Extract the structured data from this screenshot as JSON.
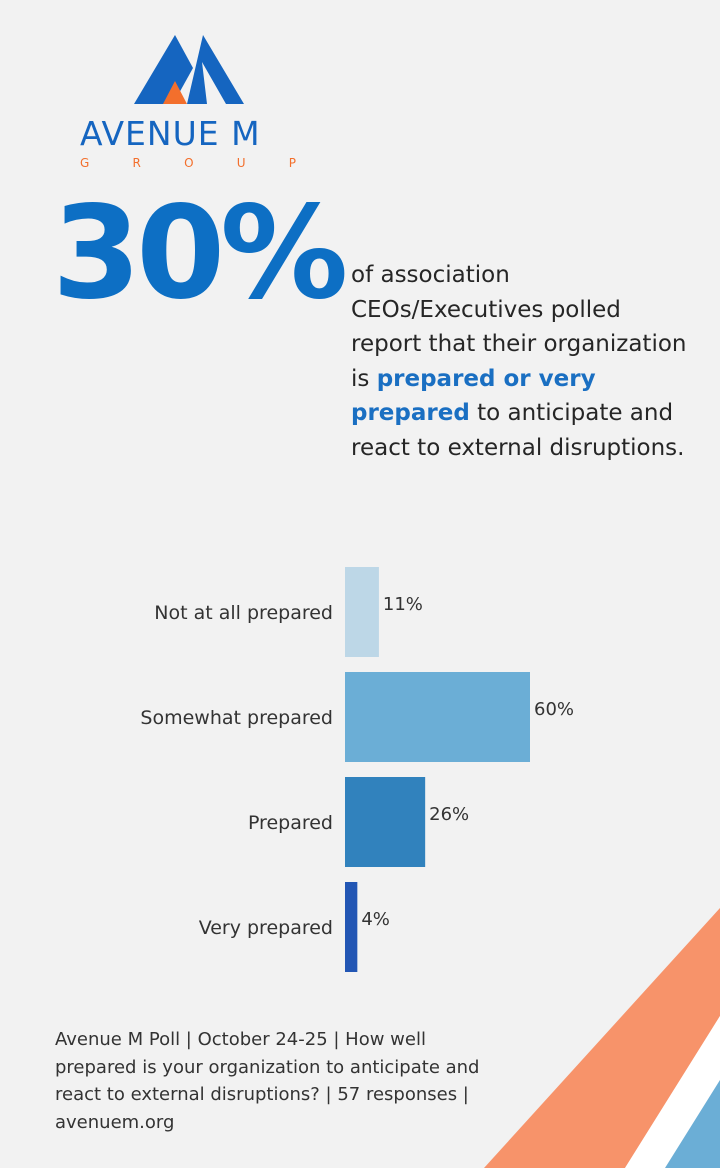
{
  "brand": {
    "name": "AVENUE M",
    "sub_letters": [
      "G",
      "R",
      "O",
      "U",
      "P"
    ],
    "colors": {
      "blue": "#1565c0",
      "orange": "#f36f2c"
    }
  },
  "headline": {
    "stat": "30%",
    "text_before": "of association CEOs/Executives polled report that their organization is ",
    "text_highlight": "prepared or very prepared",
    "text_after": " to anticipate and react to external disruptions."
  },
  "chart_data": {
    "type": "bar",
    "orientation": "horizontal",
    "categories": [
      "Not at all prepared",
      "Somewhat prepared",
      "Prepared",
      "Very prepared"
    ],
    "values": [
      11,
      60,
      26,
      4
    ],
    "value_labels": [
      "11%",
      "60%",
      "26%",
      "4%"
    ],
    "unit": "%",
    "xlim": [
      0,
      60
    ],
    "colors": [
      "#bdd7e7",
      "#6baed6",
      "#3182bd",
      "#2256b4"
    ],
    "grid": false,
    "legend": "none",
    "title": "",
    "xlabel": "",
    "ylabel": ""
  },
  "footer": {
    "text": "Avenue M Poll | October 24-25 | How well prepared is your organization to anticipate and react to external disruptions? | 57 responses | avenuem.org"
  },
  "decor": {
    "stripe_colors": [
      "#f7936a",
      "#6baed6"
    ]
  }
}
